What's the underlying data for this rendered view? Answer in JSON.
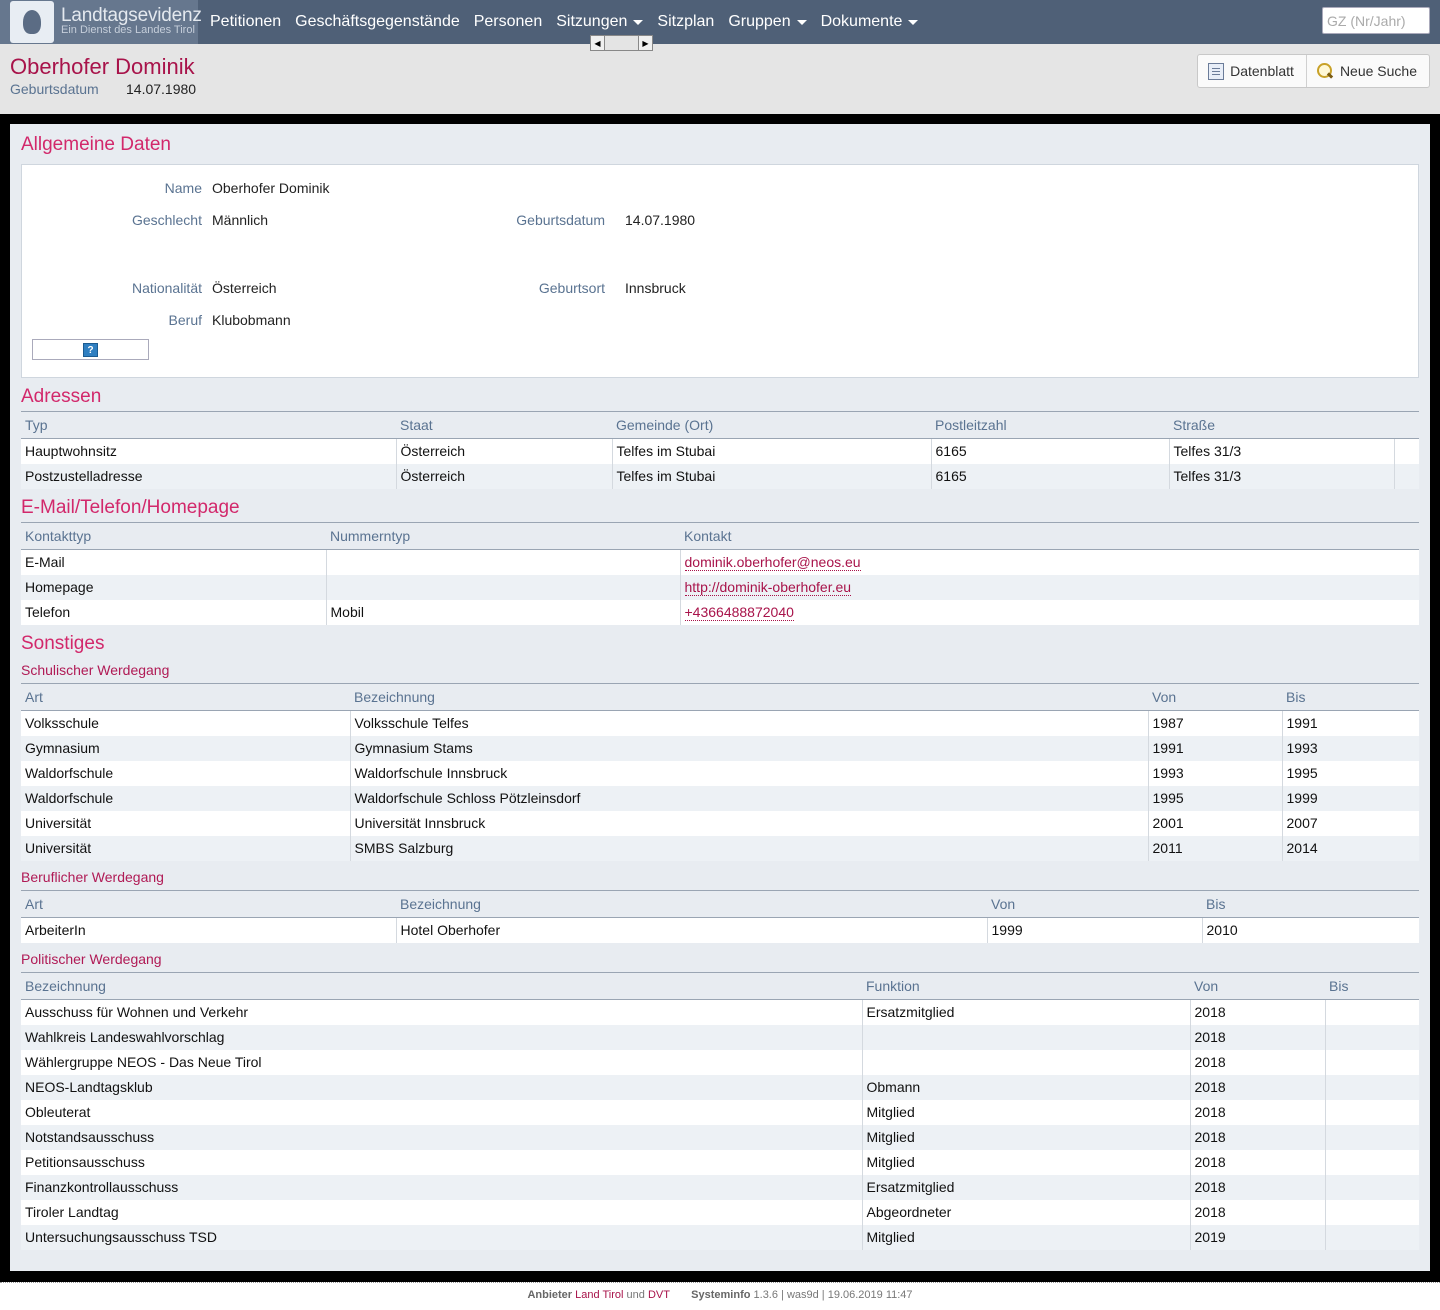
{
  "nav": {
    "brand_title": "Landtagsevidenz",
    "brand_subtitle": "Ein Dienst des Landes Tirol",
    "items": [
      {
        "label": "Petitionen",
        "dropdown": false
      },
      {
        "label": "Geschäftsgegenstände",
        "dropdown": false
      },
      {
        "label": "Personen",
        "dropdown": false
      },
      {
        "label": "Sitzungen",
        "dropdown": true
      },
      {
        "label": "Sitzplan",
        "dropdown": false
      },
      {
        "label": "Gruppen",
        "dropdown": true
      },
      {
        "label": "Dokumente",
        "dropdown": true
      }
    ],
    "search_placeholder": "GZ (Nr/Jahr)"
  },
  "header": {
    "name": "Oberhofer Dominik",
    "birth_label": "Geburtsdatum",
    "birth_value": "14.07.1980",
    "btn_datenblatt": "Datenblatt",
    "btn_neue_suche": "Neue Suche"
  },
  "general": {
    "title": "Allgemeine Daten",
    "name_label": "Name",
    "name_value": "Oberhofer Dominik",
    "gender_label": "Geschlecht",
    "gender_value": "Männlich",
    "birthdate_label": "Geburtsdatum",
    "birthdate_value": "14.07.1980",
    "nationality_label": "Nationalität",
    "nationality_value": "Österreich",
    "birthplace_label": "Geburtsort",
    "birthplace_value": "Innsbruck",
    "job_label": "Beruf",
    "job_value": "Klubobmann"
  },
  "addresses": {
    "title": "Adressen",
    "headers": [
      "Typ",
      "Staat",
      "Gemeinde (Ort)",
      "Postleitzahl",
      "Straße"
    ],
    "rows": [
      [
        "Hauptwohnsitz",
        "Österreich",
        "Telfes im Stubai",
        "6165",
        "Telfes 31/3"
      ],
      [
        "Postzustelladresse",
        "Österreich",
        "Telfes im Stubai",
        "6165",
        "Telfes 31/3"
      ]
    ]
  },
  "contact": {
    "title": "E-Mail/Telefon/Homepage",
    "headers": [
      "Kontakttyp",
      "Nummerntyp",
      "Kontakt"
    ],
    "rows": [
      [
        "E-Mail",
        "",
        "dominik.oberhofer@neos.eu"
      ],
      [
        "Homepage",
        "",
        "http://dominik-oberhofer.eu"
      ],
      [
        "Telefon",
        "Mobil",
        "+4366488872040"
      ]
    ]
  },
  "misc": {
    "title": "Sonstiges",
    "school": {
      "title": "Schulischer Werdegang",
      "headers": [
        "Art",
        "Bezeichnung",
        "Von",
        "Bis"
      ],
      "rows": [
        [
          "Volksschule",
          "Volksschule Telfes",
          "1987",
          "1991"
        ],
        [
          "Gymnasium",
          "Gymnasium Stams",
          "1991",
          "1993"
        ],
        [
          "Waldorfschule",
          "Waldorfschule Innsbruck",
          "1993",
          "1995"
        ],
        [
          "Waldorfschule",
          "Waldorfschule Schloss Pötzleinsdorf",
          "1995",
          "1999"
        ],
        [
          "Universität",
          "Universität Innsbruck",
          "2001",
          "2007"
        ],
        [
          "Universität",
          "SMBS Salzburg",
          "2011",
          "2014"
        ]
      ]
    },
    "career": {
      "title": "Beruflicher Werdegang",
      "headers": [
        "Art",
        "Bezeichnung",
        "Von",
        "Bis"
      ],
      "rows": [
        [
          "ArbeiterIn",
          "Hotel Oberhofer",
          "1999",
          "2010"
        ]
      ]
    },
    "political": {
      "title": "Politischer Werdegang",
      "headers": [
        "Bezeichnung",
        "Funktion",
        "Von",
        "Bis"
      ],
      "rows": [
        [
          "Ausschuss für Wohnen und Verkehr",
          "Ersatzmitglied",
          "2018",
          ""
        ],
        [
          "Wahlkreis Landeswahlvorschlag",
          "",
          "2018",
          ""
        ],
        [
          "Wählergruppe NEOS - Das Neue Tirol",
          "",
          "2018",
          ""
        ],
        [
          "NEOS-Landtagsklub",
          "Obmann",
          "2018",
          ""
        ],
        [
          "Obleuterat",
          "Mitglied",
          "2018",
          ""
        ],
        [
          "Notstandsausschuss",
          "Mitglied",
          "2018",
          ""
        ],
        [
          "Petitionsausschuss",
          "Mitglied",
          "2018",
          ""
        ],
        [
          "Finanzkontrollausschuss",
          "Ersatzmitglied",
          "2018",
          ""
        ],
        [
          "Tiroler Landtag",
          "Abgeordneter",
          "2018",
          ""
        ],
        [
          "Untersuchungsausschuss TSD",
          "Mitglied",
          "2019",
          ""
        ]
      ]
    }
  },
  "footer": {
    "anbieter": "Anbieter",
    "land_tirol": "Land Tirol",
    "und": "und",
    "dvt": "DVT",
    "systeminfo": "Systeminfo",
    "version": "1.3.6 | was9d | 19.06.2019 11:47"
  },
  "colors": {
    "nav": "#4f6077",
    "accent": "#d2286b",
    "label": "#5a7391"
  }
}
